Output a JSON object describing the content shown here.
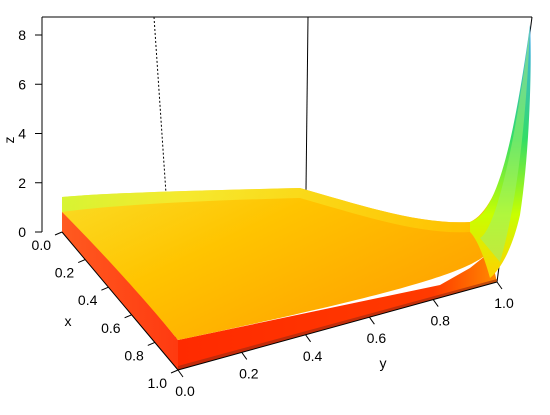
{
  "chart_data": {
    "type": "surface3d",
    "title": "",
    "xlabel": "x",
    "ylabel": "y",
    "zlabel": "z",
    "xlim": [
      0.0,
      1.0
    ],
    "ylim": [
      0.0,
      1.0
    ],
    "zlim": [
      0,
      8.5
    ],
    "x_ticks": [
      "0.0",
      "0.2",
      "0.4",
      "0.6",
      "0.8",
      "1.0"
    ],
    "y_ticks": [
      "0.0",
      "0.2",
      "0.4",
      "0.6",
      "0.8",
      "1.0"
    ],
    "z_ticks": [
      "0",
      "2",
      "4",
      "6",
      "8"
    ],
    "surface": {
      "description_points": [
        {
          "x": 0.0,
          "y": 0.0,
          "z": 1.5
        },
        {
          "x": 0.0,
          "y": 1.0,
          "z": 8.5
        },
        {
          "x": 1.0,
          "y": 0.0,
          "z": 1.0
        },
        {
          "x": 1.0,
          "y": 1.0,
          "z": 1.2
        },
        {
          "x": 0.5,
          "y": 0.5,
          "z": 1.05
        }
      ]
    },
    "colors": {
      "low": "#ff2a00",
      "mid": "#ffcc00",
      "high_mid": "#c8ff00",
      "top": "#3fa9f5"
    },
    "box": true,
    "grid": false,
    "legend": "none"
  }
}
